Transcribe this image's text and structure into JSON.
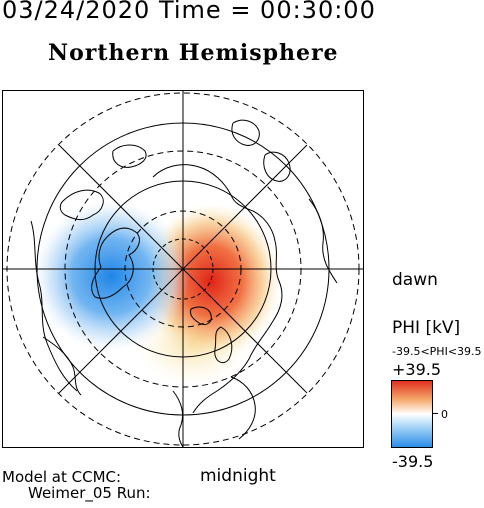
{
  "header": {
    "title_line": "03/24/2020 Time = 00:30:00",
    "hemisphere": "Northern Hemisphere"
  },
  "map": {
    "labels": {
      "dawn": "dawn",
      "midnight": "midnight"
    },
    "colors": {
      "positive": "#e03020",
      "negative": "#2a8de8",
      "neutral": "#ffffff"
    }
  },
  "colorbar": {
    "title": "PHI [kV]",
    "range_label": "-39.5<PHI<39.5",
    "max_label": "+39.5",
    "zero_label": "0",
    "min_label": "-39.5",
    "max_value": 39.5,
    "min_value": -39.5
  },
  "footer": {
    "model_at": "Model at CCMC:",
    "model_run": "Weimer_05 Run:"
  }
}
